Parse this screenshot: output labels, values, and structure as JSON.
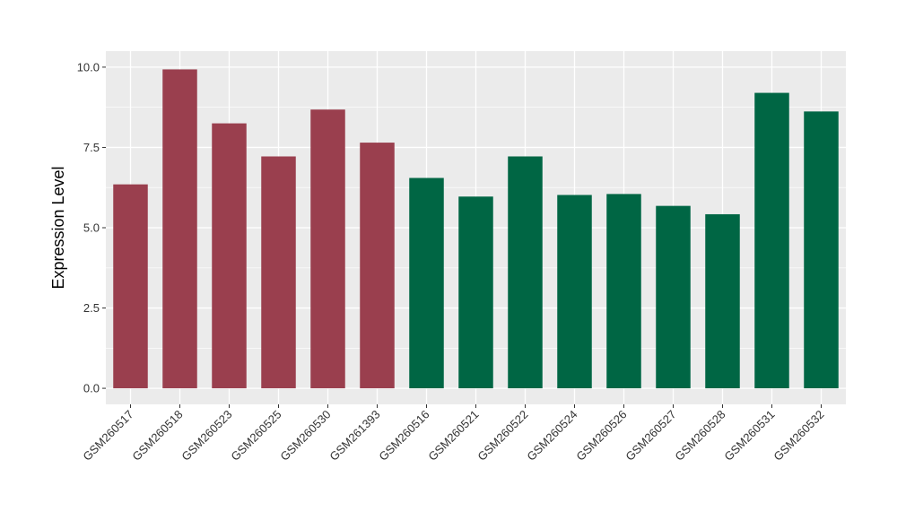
{
  "chart_data": {
    "type": "bar",
    "title": "",
    "xlabel": "",
    "ylabel": "Expression Level",
    "ylim": [
      -0.5,
      10.5
    ],
    "yticks": [
      "0.0",
      "2.5",
      "5.0",
      "7.5",
      "10.0"
    ],
    "grid": true,
    "categories": [
      "GSM260517",
      "GSM260518",
      "GSM260523",
      "GSM260525",
      "GSM260530",
      "GSM261393",
      "GSM260516",
      "GSM260521",
      "GSM260522",
      "GSM260524",
      "GSM260526",
      "GSM260527",
      "GSM260528",
      "GSM260531",
      "GSM260532"
    ],
    "values": [
      6.35,
      9.93,
      8.25,
      7.22,
      8.68,
      7.65,
      6.55,
      5.97,
      7.22,
      6.02,
      6.05,
      5.68,
      5.42,
      9.2,
      8.62
    ],
    "groups": [
      0,
      0,
      0,
      0,
      0,
      0,
      1,
      1,
      1,
      1,
      1,
      1,
      1,
      1,
      1
    ],
    "group_colors": [
      "#9a3f4e",
      "#006644"
    ],
    "panel_background": "#ebebeb",
    "grid_color": "#ffffff"
  }
}
